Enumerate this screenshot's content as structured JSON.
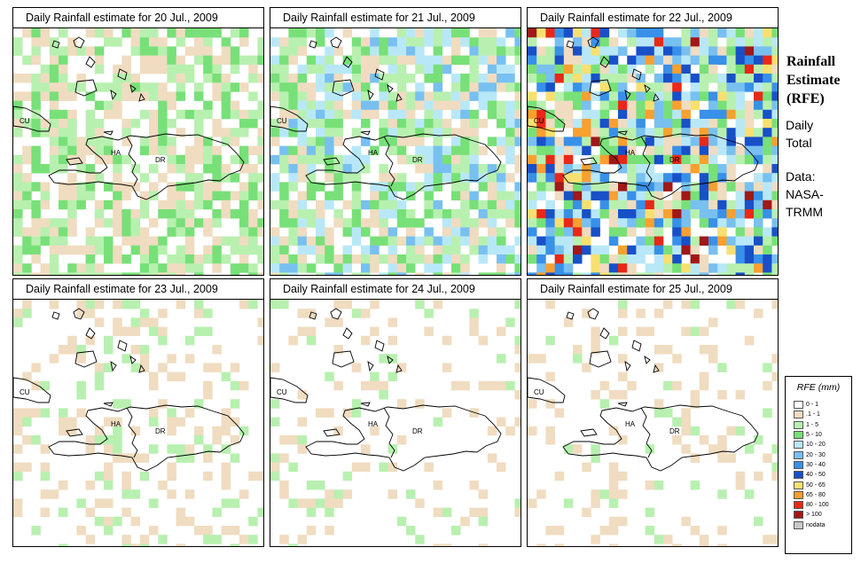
{
  "panels": [
    {
      "title": "Daily Rainfall estimate for  20 Jul., 2009",
      "seed": 11,
      "intensity": 1.0,
      "density": 0.68
    },
    {
      "title": "Daily Rainfall estimate for  21 Jul., 2009",
      "seed": 23,
      "intensity": 1.6,
      "density": 0.75
    },
    {
      "title": "Daily Rainfall estimate for  22 Jul., 2009",
      "seed": 37,
      "intensity": 2.6,
      "density": 0.9
    },
    {
      "title": "Daily Rainfall estimate for  23 Jul., 2009",
      "seed": 41,
      "intensity": 0.55,
      "density": 0.3
    },
    {
      "title": "Daily Rainfall estimate for  24 Jul., 2009",
      "seed": 53,
      "intensity": 0.5,
      "density": 0.18
    },
    {
      "title": "Daily Rainfall estimate for  25 Jul., 2009",
      "seed": 67,
      "intensity": 0.5,
      "density": 0.16
    }
  ],
  "labels": {
    "cuba": "CU",
    "haiti": "HA",
    "dr": "DR"
  },
  "side": {
    "title_lines": [
      "Rainfall",
      "Estimate",
      "(RFE)"
    ],
    "daily_lines": [
      "Daily",
      "Total"
    ],
    "data_lines": [
      "Data:",
      "NASA-",
      "TRMM"
    ]
  },
  "legend": {
    "title": "RFE (mm)",
    "items": [
      {
        "label": "0 - 1",
        "color": "#ffffff"
      },
      {
        "label": ".1 - 1",
        "color": "#f0dcc0"
      },
      {
        "label": "1 - 5",
        "color": "#b8f0b0"
      },
      {
        "label": "5 - 10",
        "color": "#78e078"
      },
      {
        "label": "10 - 20",
        "color": "#b8e8f8"
      },
      {
        "label": "20 - 30",
        "color": "#78c0f0"
      },
      {
        "label": "30 - 40",
        "color": "#3890e8"
      },
      {
        "label": "40 - 50",
        "color": "#1850c8"
      },
      {
        "label": "50 - 65",
        "color": "#f8e070"
      },
      {
        "label": "65 - 80",
        "color": "#f8a030"
      },
      {
        "label": "80 - 100",
        "color": "#e82818"
      },
      {
        "label": "> 100",
        "color": "#a01818"
      },
      {
        "label": "nodata",
        "color": "#c8c8c8"
      }
    ]
  }
}
